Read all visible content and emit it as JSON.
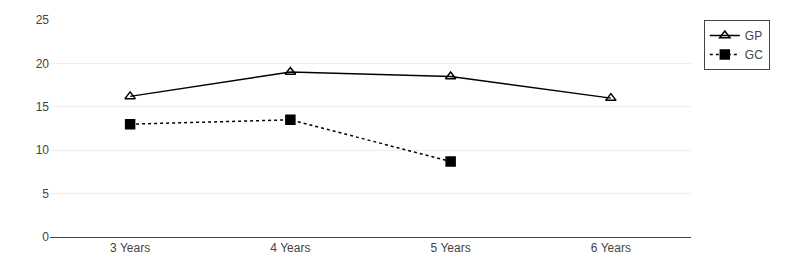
{
  "chart_data": {
    "type": "line",
    "categories": [
      "3 Years",
      "4 Years",
      "5 Years",
      "6 Years"
    ],
    "series": [
      {
        "name": "GP",
        "color": "#000000",
        "values": [
          16.2,
          19.0,
          18.5,
          16.0
        ],
        "marker": "triangle-open",
        "line_style": "solid"
      },
      {
        "name": "GC",
        "color": "#000000",
        "values": [
          13.0,
          13.5,
          8.7,
          null
        ],
        "marker": "square",
        "line_style": "dotted"
      }
    ],
    "ylim": [
      0,
      25
    ],
    "yticks": [
      0,
      5,
      10,
      15,
      20,
      25
    ],
    "grid": true,
    "legend": "upper right"
  }
}
